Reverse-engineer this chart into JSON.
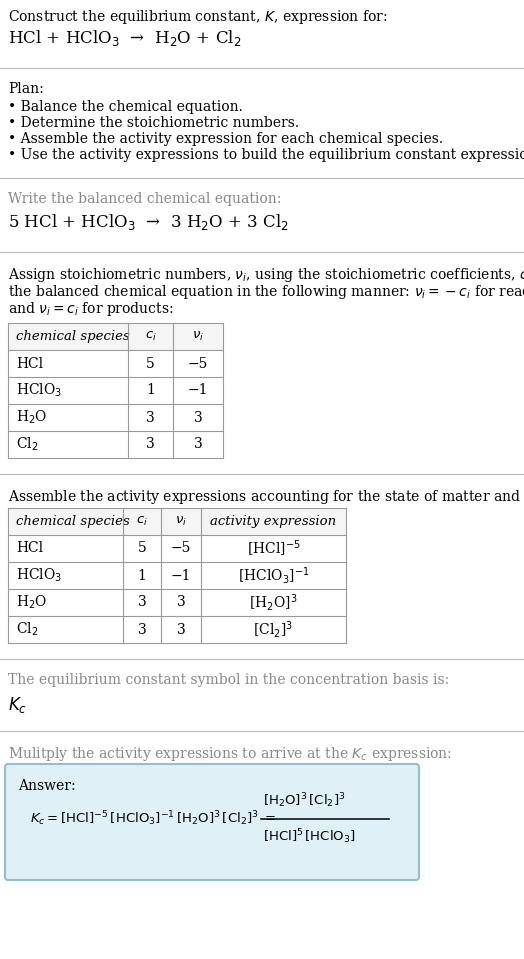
{
  "title_line1": "Construct the equilibrium constant, $K$, expression for:",
  "title_line2": "HCl + HClO$_3$  →  H$_2$O + Cl$_2$",
  "plan_header": "Plan:",
  "plan_bullets": [
    "• Balance the chemical equation.",
    "• Determine the stoichiometric numbers.",
    "• Assemble the activity expression for each chemical species.",
    "• Use the activity expressions to build the equilibrium constant expression."
  ],
  "balanced_header": "Write the balanced chemical equation:",
  "balanced_eq": "5 HCl + HClO$_3$  →  3 H$_2$O + 3 Cl$_2$",
  "stoich_intro_lines": [
    "Assign stoichiometric numbers, $\\nu_i$, using the stoichiometric coefficients, $c_i$, from",
    "the balanced chemical equation in the following manner: $\\nu_i = -c_i$ for reactants",
    "and $\\nu_i = c_i$ for products:"
  ],
  "table1_headers": [
    "chemical species",
    "$c_i$",
    "$\\nu_i$"
  ],
  "table1_rows": [
    [
      "HCl",
      "5",
      "−5"
    ],
    [
      "HClO$_3$",
      "1",
      "−1"
    ],
    [
      "H$_2$O",
      "3",
      "3"
    ],
    [
      "Cl$_2$",
      "3",
      "3"
    ]
  ],
  "assemble_intro": "Assemble the activity expressions accounting for the state of matter and $\\nu_i$:",
  "table2_headers": [
    "chemical species",
    "$c_i$",
    "$\\nu_i$",
    "activity expression"
  ],
  "table2_rows": [
    [
      "HCl",
      "5",
      "−5",
      "[HCl]$^{-5}$"
    ],
    [
      "HClO$_3$",
      "1",
      "−1",
      "[HClO$_3$]$^{-1}$"
    ],
    [
      "H$_2$O",
      "3",
      "3",
      "[H$_2$O]$^3$"
    ],
    [
      "Cl$_2$",
      "3",
      "3",
      "[Cl$_2$]$^3$"
    ]
  ],
  "kc_intro": "The equilibrium constant symbol in the concentration basis is:",
  "kc_symbol": "$K_c$",
  "multiply_intro": "Mulitply the activity expressions to arrive at the $K_c$ expression:",
  "answer_label": "Answer:",
  "answer_box_color": "#dff0f7",
  "answer_box_border": "#90bfd0",
  "bg_color": "#ffffff",
  "text_color": "#000000",
  "separator_color": "#bbbbbb",
  "table_border_color": "#999999",
  "font_size": 10.0,
  "table_font_size": 10.0
}
